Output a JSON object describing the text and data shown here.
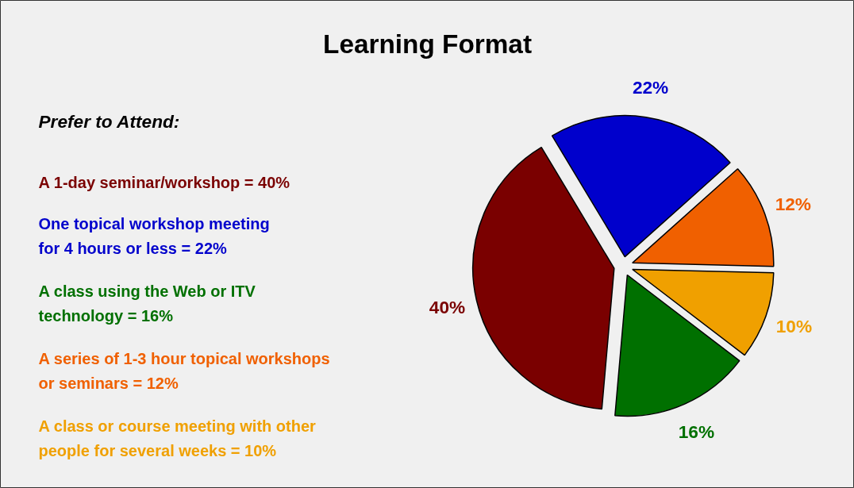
{
  "chart_data": {
    "type": "pie",
    "title": "Learning Format",
    "subtitle": "Prefer to Attend:",
    "categories": [
      null,
      null,
      null,
      null,
      null
    ],
    "annotations": [
      "A 1-day seminar/workshop = 40%",
      "One topical workshop meeting\nfor 4 hours or less = 22%",
      "A class using the Web or ITV\ntechnology = 16%",
      "A series of 1-3 hour topical workshops\nor seminars = 12%",
      "A class or course meeting with other\npeople for several weeks = 10%"
    ],
    "values": [
      40,
      22,
      12,
      10,
      16
    ],
    "value_labels": [
      "40%",
      "22%",
      "12%",
      "10%",
      "16%"
    ],
    "colors": [
      "#7a0000",
      "#0000cc",
      "#f06000",
      "#f0a000",
      "#007000"
    ]
  }
}
